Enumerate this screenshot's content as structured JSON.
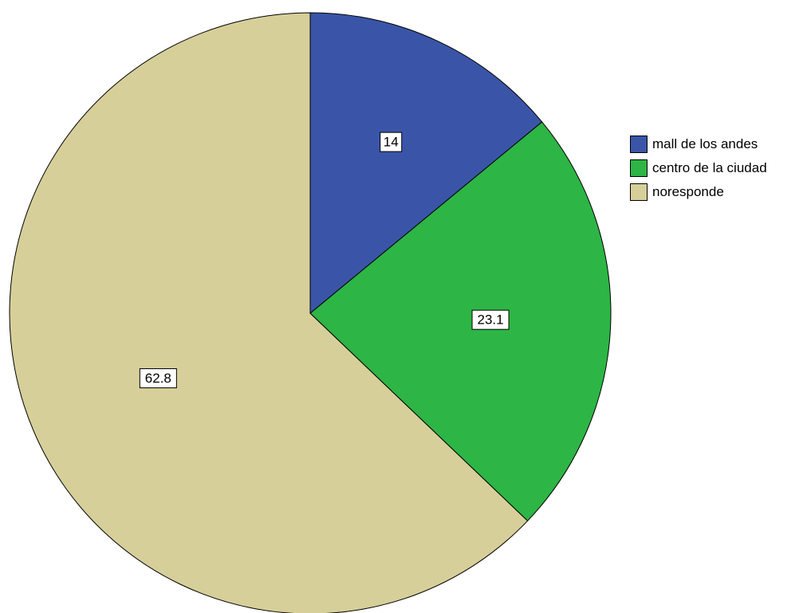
{
  "chart_data": {
    "type": "pie",
    "title": "",
    "start_angle_deg": 0,
    "direction": "clockwise",
    "slices": [
      {
        "label": "mall de los andes",
        "value": 14,
        "display": "14",
        "color": "#3a55a8"
      },
      {
        "label": "centro de la ciudad",
        "value": 23.1,
        "display": "23.1",
        "color": "#2db545"
      },
      {
        "label": "noresponde",
        "value": 62.8,
        "display": "62.8",
        "color": "#d6cf99"
      }
    ],
    "legend": {
      "placement": "right",
      "items": [
        "mall de los andes",
        "centro de la ciudad",
        "noresponde"
      ]
    },
    "outline_color": "#000000"
  }
}
